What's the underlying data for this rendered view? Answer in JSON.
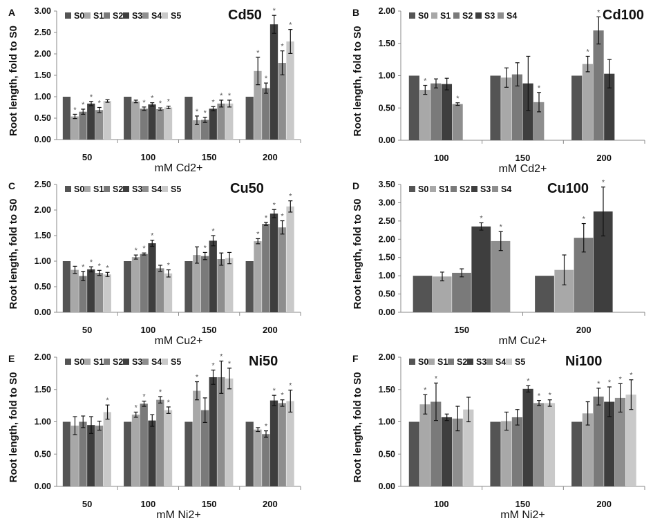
{
  "colors": {
    "S0": "#545454",
    "S1": "#a8a8a8",
    "S2": "#7a7a7a",
    "S3": "#3e3e3e",
    "S4": "#8e8e8e",
    "S5": "#c9c9c9",
    "axis": "#8a8a8a",
    "error": "#111111"
  },
  "chart_data": [
    {
      "type": "bar",
      "panel": "A",
      "title": "Cd50",
      "xlabel": "mM Cd2+",
      "ylabel": "Root length, fold to S0",
      "ylim": [
        0,
        3
      ],
      "ystep": 0.5,
      "legend": [
        "S0",
        "S1",
        "S2",
        "S3",
        "S4",
        "S5"
      ],
      "categories": [
        "50",
        "100",
        "150",
        "200"
      ],
      "series_values": [
        [
          1.0,
          0.54,
          0.65,
          0.84,
          0.69,
          0.9
        ],
        [
          1.0,
          0.89,
          0.72,
          0.82,
          0.71,
          0.75
        ],
        [
          1.0,
          0.45,
          0.46,
          0.72,
          0.84,
          0.84
        ],
        [
          1.0,
          1.6,
          1.2,
          2.69,
          1.79,
          2.29
        ]
      ],
      "errors": [
        [
          0,
          0.05,
          0.06,
          0.05,
          0.06,
          0.03
        ],
        [
          0,
          0.03,
          0.04,
          0.04,
          0.03,
          0.03
        ],
        [
          0,
          0.1,
          0.06,
          0.05,
          0.08,
          0.08
        ],
        [
          0,
          0.32,
          0.12,
          0.21,
          0.28,
          0.28
        ]
      ],
      "significant": [
        [
          0,
          1,
          1,
          1,
          1,
          0
        ],
        [
          0,
          0,
          1,
          1,
          1,
          1
        ],
        [
          0,
          1,
          1,
          1,
          1,
          1
        ],
        [
          0,
          1,
          1,
          1,
          1,
          1
        ]
      ]
    },
    {
      "type": "bar",
      "panel": "B",
      "title": "Cd100",
      "xlabel": "mM Cd2+",
      "ylabel": "Root length, fold to S0",
      "ylim": [
        0,
        2
      ],
      "ystep": 0.5,
      "legend": [
        "S0",
        "S1",
        "S2",
        "S3",
        "S4"
      ],
      "categories": [
        "100",
        "150",
        "200"
      ],
      "series_values": [
        [
          1.0,
          0.78,
          0.88,
          0.87,
          0.56
        ],
        [
          1.0,
          0.97,
          1.02,
          0.88,
          0.59
        ],
        [
          1.0,
          1.18,
          1.7,
          1.03
        ]
      ],
      "errors": [
        [
          0,
          0.07,
          0.07,
          0.09,
          0.02
        ],
        [
          0,
          0.15,
          0.18,
          0.42,
          0.15
        ],
        [
          0,
          0.12,
          0.21,
          0.22
        ]
      ],
      "significant": [
        [
          0,
          1,
          0,
          0,
          1
        ],
        [
          0,
          0,
          0,
          0,
          1
        ],
        [
          0,
          1,
          1,
          0
        ]
      ]
    },
    {
      "type": "bar",
      "panel": "C",
      "title": "Cu50",
      "xlabel": "mM Cu2+",
      "ylabel": "Root length, fold to S0",
      "ylim": [
        0,
        2.5
      ],
      "ystep": 0.5,
      "legend": [
        "S0",
        "S1",
        "S2",
        "S3",
        "S4",
        "S5"
      ],
      "categories": [
        "50",
        "100",
        "150",
        "200"
      ],
      "series_values": [
        [
          1.0,
          0.83,
          0.71,
          0.84,
          0.77,
          0.74
        ],
        [
          1.0,
          1.08,
          1.14,
          1.35,
          0.86,
          0.76
        ],
        [
          1.0,
          1.12,
          1.1,
          1.4,
          1.04,
          1.06
        ],
        [
          1.0,
          1.39,
          1.73,
          1.93,
          1.66,
          2.07
        ]
      ],
      "errors": [
        [
          0,
          0.07,
          0.09,
          0.05,
          0.05,
          0.04
        ],
        [
          0,
          0.04,
          0.02,
          0.06,
          0.06,
          0.07
        ],
        [
          0,
          0.16,
          0.07,
          0.1,
          0.12,
          0.11
        ],
        [
          0,
          0.05,
          0.03,
          0.08,
          0.13,
          0.11
        ]
      ],
      "significant": [
        [
          0,
          0,
          1,
          1,
          1,
          1
        ],
        [
          0,
          1,
          1,
          1,
          0,
          1
        ],
        [
          0,
          0,
          1,
          1,
          0,
          0
        ],
        [
          0,
          1,
          1,
          1,
          1,
          1
        ]
      ]
    },
    {
      "type": "bar",
      "panel": "D",
      "title": "Cu100",
      "xlabel": "mM Cu2+",
      "ylabel": "Root length, fold to S0",
      "ylim": [
        0,
        3.5
      ],
      "ystep": 0.5,
      "legend": [
        "S0",
        "S1",
        "S2",
        "S3",
        "S4"
      ],
      "categories": [
        "150",
        "200"
      ],
      "series_values": [
        [
          1.0,
          0.98,
          1.08,
          2.35,
          1.95
        ],
        [
          1.0,
          1.16,
          2.04,
          2.76
        ]
      ],
      "errors": [
        [
          0,
          0.12,
          0.11,
          0.1,
          0.26
        ],
        [
          0,
          0.41,
          0.39,
          0.67
        ]
      ],
      "significant": [
        [
          0,
          0,
          0,
          1,
          1
        ],
        [
          0,
          0,
          1,
          1
        ]
      ]
    },
    {
      "type": "bar",
      "panel": "E",
      "title": "Ni50",
      "xlabel": "mM Ni2+",
      "ylabel": "Root length, fold to S0",
      "ylim": [
        0,
        2
      ],
      "ystep": 0.5,
      "legend": [
        "S0",
        "S1",
        "S2",
        "S3",
        "S4",
        "S5"
      ],
      "categories": [
        "50",
        "100",
        "150",
        "200"
      ],
      "series_values": [
        [
          1.0,
          0.94,
          1.0,
          0.95,
          0.94,
          1.15
        ],
        [
          1.0,
          1.11,
          1.28,
          1.02,
          1.34,
          1.18
        ],
        [
          1.0,
          1.48,
          1.18,
          1.69,
          1.69,
          1.67
        ],
        [
          1.0,
          0.88,
          0.81,
          1.33,
          1.29,
          1.32
        ]
      ],
      "errors": [
        [
          0,
          0.14,
          0.09,
          0.13,
          0.07,
          0.11
        ],
        [
          0,
          0.04,
          0.04,
          0.09,
          0.05,
          0.05
        ],
        [
          0,
          0.14,
          0.19,
          0.11,
          0.25,
          0.16
        ],
        [
          0,
          0.03,
          0.05,
          0.08,
          0.05,
          0.17
        ]
      ],
      "significant": [
        [
          0,
          0,
          0,
          0,
          0,
          1
        ],
        [
          0,
          1,
          1,
          0,
          1,
          1
        ],
        [
          0,
          1,
          0,
          1,
          1,
          1
        ],
        [
          0,
          0,
          1,
          1,
          1,
          1
        ]
      ]
    },
    {
      "type": "bar",
      "panel": "F",
      "title": "Ni100",
      "xlabel": "mM Ni2+",
      "ylabel": "Root length, fold to S0",
      "ylim": [
        0,
        2
      ],
      "ystep": 0.5,
      "legend": [
        "S0",
        "S1",
        "S2",
        "S3",
        "S4",
        "S5"
      ],
      "categories": [
        "100",
        "150",
        "200"
      ],
      "series_values": [
        [
          1.0,
          1.27,
          1.31,
          1.07,
          1.05,
          1.19
        ],
        [
          1.0,
          1.01,
          1.07,
          1.51,
          1.29,
          1.29
        ],
        [
          1.0,
          1.13,
          1.39,
          1.31,
          1.37,
          1.42
        ]
      ],
      "errors": [
        [
          0,
          0.15,
          0.29,
          0.05,
          0.19,
          0.19
        ],
        [
          0,
          0.14,
          0.12,
          0.05,
          0.04,
          0.05
        ],
        [
          0,
          0.18,
          0.13,
          0.23,
          0.22,
          0.23
        ]
      ],
      "significant": [
        [
          0,
          1,
          1,
          0,
          0,
          0
        ],
        [
          0,
          0,
          0,
          1,
          1,
          1
        ],
        [
          0,
          0,
          1,
          1,
          1,
          1
        ]
      ]
    }
  ],
  "star_symbol": "*"
}
